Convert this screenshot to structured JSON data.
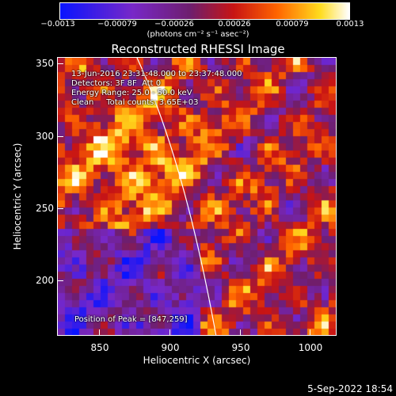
{
  "colorbar": {
    "ticks": [
      "−0.0013",
      "−0.00079",
      "−0.00026",
      "0.00026",
      "0.00079",
      "0.0013"
    ],
    "unit_line": "(photons cm⁻² s⁻¹ asec⁻²)"
  },
  "title": "Reconstructed RHESSI Image",
  "info": {
    "line1": "13-Jun-2016 23:31:48.000 to 23:37:48.000",
    "line2": "Detectors: 3F 8F  Att 0",
    "line3": "Energy Range: 25.0 - 50.0 keV",
    "line4": "Clean     Total counts: 3.65E+03",
    "peak": "Position of Peak = [847,259]"
  },
  "axes": {
    "xlabel": "Heliocentric X (arcsec)",
    "ylabel": "Heliocentric Y (arcsec)",
    "xticks": [
      "850",
      "900",
      "950",
      "1000"
    ],
    "yticks": [
      "350",
      "300",
      "250",
      "200"
    ],
    "xrange": [
      821,
      1014
    ],
    "yrange": [
      159,
      355
    ]
  },
  "timestamp": "5-Sep-2022 18:54",
  "colors": {
    "background": "#000000",
    "limb": "#ffffff"
  }
}
